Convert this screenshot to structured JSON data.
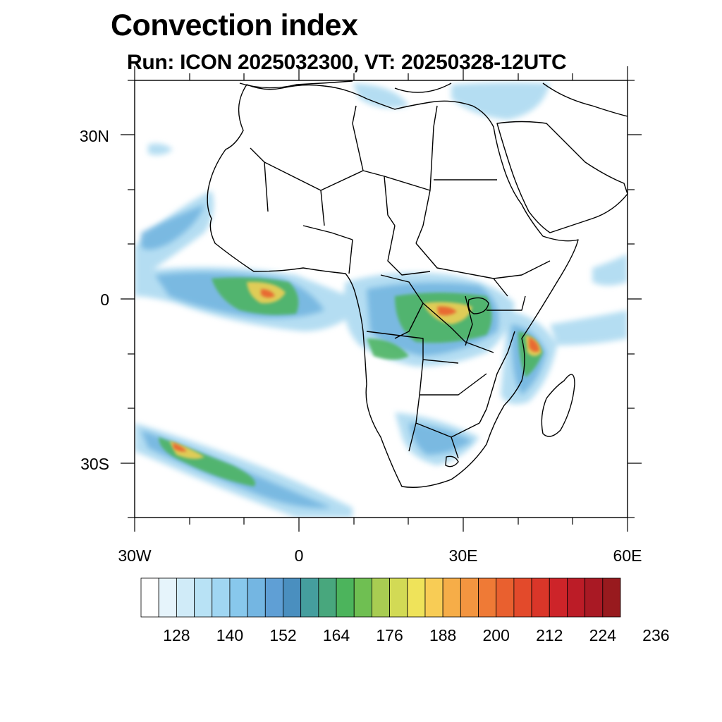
{
  "title": "Convection index",
  "subtitle": "Run: ICON 2025032300,  VT: 20250328-12UTC",
  "axes": {
    "lat_labels": [
      "30N",
      "0",
      "30S"
    ],
    "lon_labels": [
      "30W",
      "0",
      "30E",
      "60E"
    ]
  },
  "colorbar": {
    "colors": [
      "#ffffff",
      "#e6f4fb",
      "#d0ebf8",
      "#b8e2f5",
      "#a0d6f2",
      "#88c8ec",
      "#74b6e2",
      "#5f9fd5",
      "#4a8fbf",
      "#459e9e",
      "#48a77d",
      "#4cb45c",
      "#6fbf52",
      "#a8cc52",
      "#d2da55",
      "#efe35a",
      "#f8cc55",
      "#f6ad48",
      "#f39540",
      "#ef7a36",
      "#e9602f",
      "#e34a2b",
      "#da3629",
      "#cd2429",
      "#bc1c27",
      "#a91924",
      "#981a1e"
    ],
    "tick_labels": [
      "128",
      "140",
      "152",
      "164",
      "176",
      "188",
      "200",
      "212",
      "224",
      "236"
    ]
  },
  "map_extent": {
    "lon_range": [
      -30,
      60
    ],
    "lat_range": [
      -40,
      40
    ]
  }
}
